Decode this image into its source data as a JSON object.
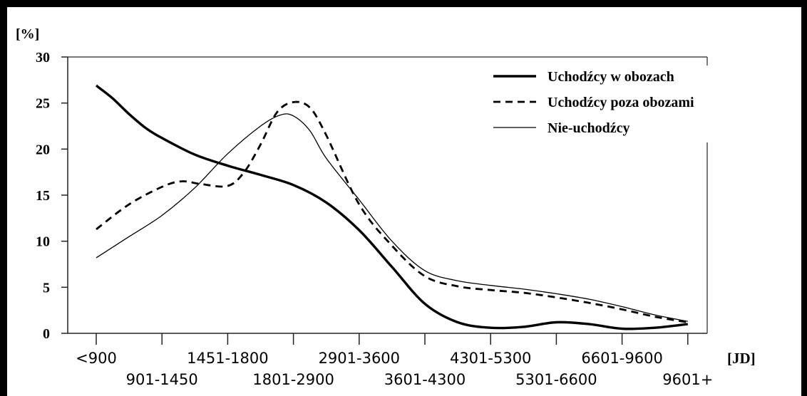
{
  "chart_data": {
    "type": "line",
    "ylabel": "[%]",
    "xlabel": "[JD]",
    "ylim": [
      0,
      30
    ],
    "yticks": [
      "0",
      "5",
      "10",
      "15",
      "20",
      "25",
      "30"
    ],
    "x_tick_labels": [
      "<900",
      "901-1450",
      "1451-1800",
      "1801-2900",
      "2901-3600",
      "3601-4300",
      "4301-5300",
      "5301-6600",
      "6601-9600",
      "9601+"
    ],
    "legend_position": "top-right",
    "grid": false,
    "series": [
      {
        "name": "Uchodźcy w obozach",
        "style": "thick-solid",
        "x": [
          0,
          0.25,
          0.5,
          0.75,
          1,
          1.5,
          2,
          2.5,
          3,
          3.5,
          4,
          4.5,
          5,
          5.5,
          6,
          6.5,
          7,
          7.5,
          8,
          8.5,
          9
        ],
        "values": [
          26.9,
          25.5,
          23.8,
          22.3,
          21.2,
          19.4,
          18.2,
          17.2,
          16.1,
          14.2,
          11.2,
          7.2,
          3.2,
          1.2,
          0.6,
          0.7,
          1.2,
          1.0,
          0.5,
          0.6,
          1.0
        ]
      },
      {
        "name": "Uchodźcy poza obozami",
        "style": "dashed",
        "x": [
          0,
          0.5,
          1,
          1.3,
          1.6,
          2,
          2.25,
          2.5,
          2.75,
          3,
          3.25,
          3.5,
          4,
          4.5,
          5,
          5.5,
          6,
          6.5,
          7,
          7.5,
          8,
          8.5,
          9
        ],
        "values": [
          11.3,
          14.0,
          15.9,
          16.5,
          16.2,
          16.0,
          17.5,
          20.5,
          24.0,
          25.1,
          24.5,
          21.5,
          14.0,
          9.5,
          6.2,
          5.1,
          4.7,
          4.4,
          3.9,
          3.3,
          2.6,
          1.8,
          1.2
        ]
      },
      {
        "name": "Nie-uchodźcy",
        "style": "thin-solid",
        "x": [
          0,
          0.5,
          1,
          1.5,
          2,
          2.5,
          2.8,
          3,
          3.25,
          3.5,
          4,
          4.5,
          5,
          5.5,
          6,
          6.5,
          7,
          7.5,
          8,
          8.5,
          9
        ],
        "values": [
          8.2,
          10.5,
          12.8,
          15.8,
          19.5,
          22.5,
          23.7,
          23.6,
          22.0,
          19.0,
          14.5,
          10.0,
          6.8,
          5.7,
          5.2,
          4.8,
          4.3,
          3.7,
          2.9,
          2.0,
          1.3
        ]
      }
    ]
  }
}
